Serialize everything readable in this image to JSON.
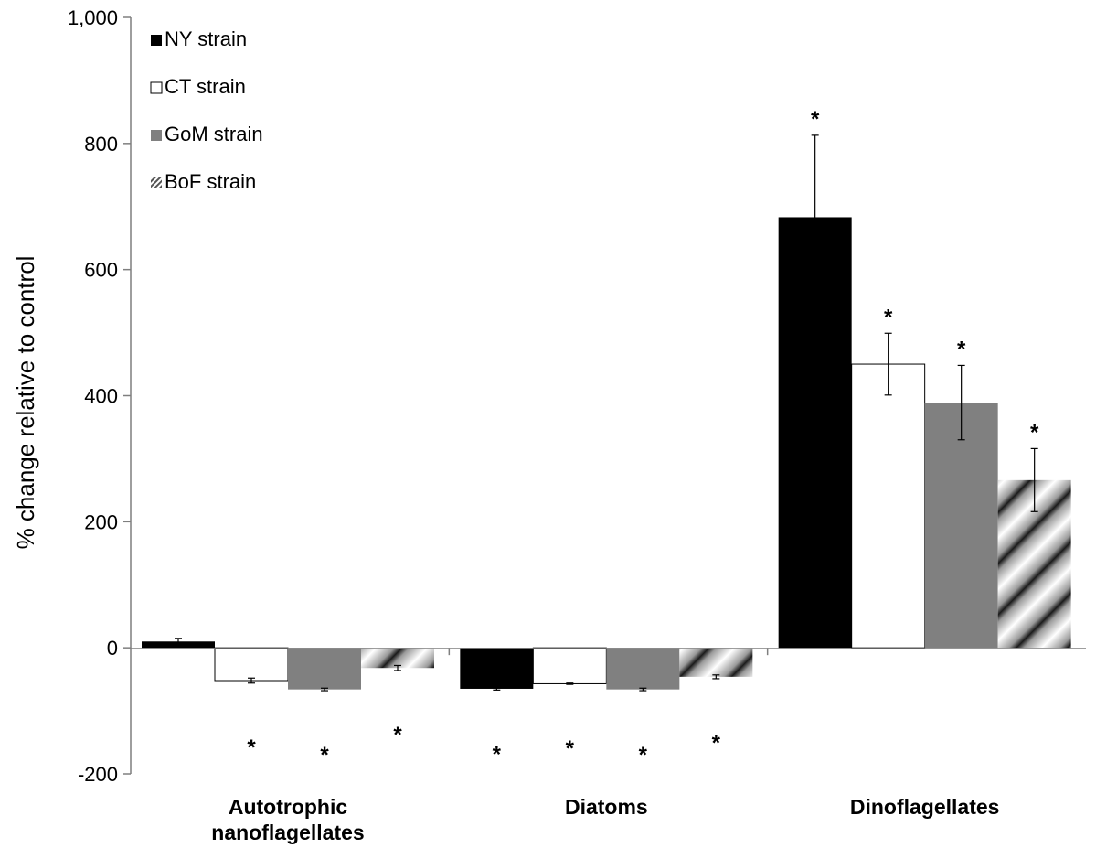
{
  "chart_data": {
    "type": "bar",
    "title": "",
    "xlabel": "",
    "ylabel": "% change relative to control",
    "ylim": [
      -200,
      1000
    ],
    "yticks": [
      -200,
      0,
      200,
      400,
      600,
      800,
      1000
    ],
    "ytick_labels": [
      "-200",
      "0",
      "200",
      "400",
      "600",
      "800",
      "1,000"
    ],
    "categories": [
      [
        "Autotrophic",
        "nanoflagellates"
      ],
      [
        "Diatoms"
      ],
      [
        "Dinoflagellates"
      ]
    ],
    "legend_position": "top-left",
    "significance_marker": "*",
    "series": [
      {
        "name": "NY strain",
        "color": "#000000",
        "pattern": "solid",
        "values": [
          10,
          -65,
          683
        ],
        "errors": [
          5,
          2,
          130
        ],
        "significant": [
          false,
          true,
          true
        ]
      },
      {
        "name": "CT strain",
        "color": "#ffffff",
        "pattern": "outline",
        "values": [
          -52,
          -57,
          450
        ],
        "errors": [
          4,
          1,
          49
        ],
        "significant": [
          true,
          true,
          true
        ]
      },
      {
        "name": "GoM strain",
        "color": "#808080",
        "pattern": "solid",
        "values": [
          -66,
          -66,
          389
        ],
        "errors": [
          2,
          2,
          59
        ],
        "significant": [
          true,
          true,
          true
        ]
      },
      {
        "name": "BoF strain",
        "color": "#555555",
        "pattern": "diagonal-gradient",
        "values": [
          -32,
          -46,
          266
        ],
        "errors": [
          4,
          3,
          50
        ],
        "significant": [
          true,
          true,
          true
        ]
      }
    ]
  }
}
